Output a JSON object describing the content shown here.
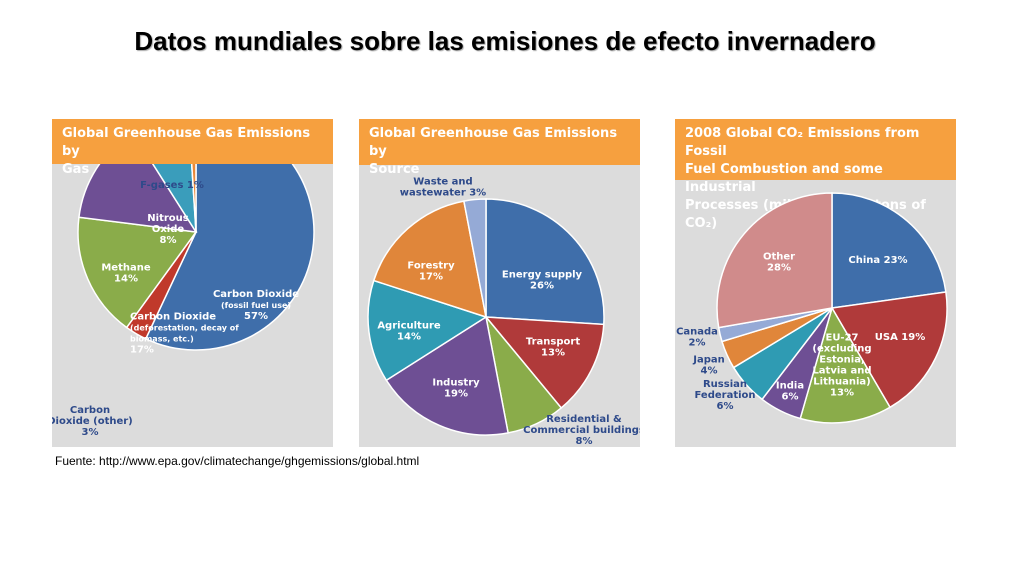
{
  "slide": {
    "title": "Datos mundiales sobre las emisiones de efecto invernadero",
    "source": "Fuente: http://www.epa.gov/climatechange/ghgemissions/global.html"
  },
  "colors": {
    "header": "#f6a03f",
    "panel_bg": "#dcdcdc"
  },
  "chart_data": [
    {
      "type": "pie",
      "title_lines": [
        "Global Greenhouse Gas Emissions by",
        "Gas"
      ],
      "slices": [
        {
          "label_lines": [
            "Carbon Dioxide",
            "(fossil fuel use)",
            "57%"
          ],
          "value": 57,
          "color": "#3f6eaa",
          "label_color": "#ffffff"
        },
        {
          "label_lines": [
            "Carbon",
            "Dioxide (other)",
            "3%"
          ],
          "value": 3,
          "color": "#c0392b",
          "label_color": "#2e4a8a"
        },
        {
          "label_lines": [
            "Carbon Dioxide",
            "(deforestation, decay of",
            "biomass, etc.)",
            "17%"
          ],
          "value": 17,
          "color": "#8aac4a",
          "label_color": "#ffffff"
        },
        {
          "label_lines": [
            "Methane",
            "14%"
          ],
          "value": 14,
          "color": "#6e4f94",
          "label_color": "#ffffff"
        },
        {
          "label_lines": [
            "Nitrous",
            "Oxide",
            "8%"
          ],
          "value": 8,
          "color": "#3a9dbb",
          "label_color": "#ffffff"
        },
        {
          "label_lines": [
            "F-gases 1%"
          ],
          "value": 1,
          "color": "#e8893a",
          "label_color": "#2e4a8a"
        }
      ]
    },
    {
      "type": "pie",
      "title_lines": [
        "Global Greenhouse Gas Emissions by",
        "Source"
      ],
      "slices": [
        {
          "label_lines": [
            "Energy supply",
            "26%"
          ],
          "value": 26,
          "color": "#3f6eaa",
          "label_color": "#ffffff"
        },
        {
          "label_lines": [
            "Transport",
            "13%"
          ],
          "value": 13,
          "color": "#b03a3a",
          "label_color": "#ffffff"
        },
        {
          "label_lines": [
            "Residential &",
            "Commercial buildings",
            "8%"
          ],
          "value": 8,
          "color": "#8aac4a",
          "label_color": "#2e4a8a"
        },
        {
          "label_lines": [
            "Industry",
            "19%"
          ],
          "value": 19,
          "color": "#6e4f94",
          "label_color": "#ffffff"
        },
        {
          "label_lines": [
            "Agriculture",
            "14%"
          ],
          "value": 14,
          "color": "#2f9bb3",
          "label_color": "#ffffff"
        },
        {
          "label_lines": [
            "Forestry",
            "17%"
          ],
          "value": 17,
          "color": "#e0863a",
          "label_color": "#ffffff"
        },
        {
          "label_lines": [
            "Waste and",
            "wastewater 3%"
          ],
          "value": 3,
          "color": "#95aad6",
          "label_color": "#2e4a8a"
        }
      ]
    },
    {
      "type": "pie",
      "title_lines": [
        "2008 Global CO₂ Emissions from Fossil",
        "Fuel Combustion and some Industrial",
        "Processes (million metric tons of CO₂)"
      ],
      "slices": [
        {
          "label_lines": [
            "China 23%"
          ],
          "value": 23,
          "color": "#3f6eaa",
          "label_color": "#ffffff"
        },
        {
          "label_lines": [
            "USA 19%"
          ],
          "value": 19,
          "color": "#b03a3a",
          "label_color": "#ffffff"
        },
        {
          "label_lines": [
            "EU-27",
            "(excluding",
            "Estonia,",
            "Latvia and",
            "Lithuania)",
            "13%"
          ],
          "value": 13,
          "color": "#8aac4a",
          "label_color": "#ffffff"
        },
        {
          "label_lines": [
            "India",
            "6%"
          ],
          "value": 6,
          "color": "#6e4f94",
          "label_color": "#ffffff"
        },
        {
          "label_lines": [
            "Russian",
            "Federation",
            "6%"
          ],
          "value": 6,
          "color": "#2f9bb3",
          "label_color": "#2e4a8a"
        },
        {
          "label_lines": [
            "Japan",
            "4%"
          ],
          "value": 4,
          "color": "#e0863a",
          "label_color": "#2e4a8a"
        },
        {
          "label_lines": [
            "Canada",
            "2%"
          ],
          "value": 2,
          "color": "#95aad6",
          "label_color": "#2e4a8a"
        },
        {
          "label_lines": [
            "Other",
            "28%"
          ],
          "value": 28,
          "color": "#d08b8b",
          "label_color": "#ffffff"
        }
      ]
    }
  ]
}
